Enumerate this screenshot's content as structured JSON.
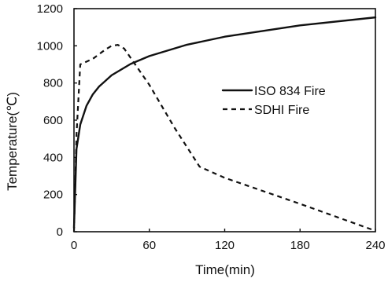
{
  "chart_data": {
    "type": "line",
    "title": "",
    "xlabel": "Time(min)",
    "ylabel": "Temperature(℃)",
    "xlim": [
      0,
      240
    ],
    "ylim": [
      0,
      1200
    ],
    "xticks": [
      0,
      60,
      120,
      180,
      240
    ],
    "yticks": [
      0,
      200,
      400,
      600,
      800,
      1000,
      1200
    ],
    "xtick_labels": [
      "0",
      "60",
      "120",
      "180",
      "240"
    ],
    "ytick_labels": [
      "0",
      "200",
      "400",
      "600",
      "800",
      "1000",
      "1200"
    ],
    "grid": false,
    "legend_position": "right",
    "series": [
      {
        "name": "ISO 834 Fire",
        "style": "solid",
        "color": "#111111",
        "x": [
          0,
          2,
          5,
          10,
          15,
          20,
          30,
          45,
          60,
          90,
          120,
          180,
          240
        ],
        "y": [
          20,
          445,
          576,
          678,
          739,
          781,
          842,
          902,
          945,
          1006,
          1049,
          1110,
          1153
        ]
      },
      {
        "name": "SDHI Fire",
        "style": "dashed",
        "color": "#111111",
        "x": [
          0,
          2,
          5,
          15,
          20,
          25,
          30,
          35,
          40,
          60,
          80,
          100,
          120,
          180,
          240
        ],
        "y": [
          0,
          520,
          900,
          930,
          955,
          980,
          1000,
          1005,
          985,
          790,
          560,
          350,
          290,
          150,
          5
        ]
      }
    ]
  }
}
